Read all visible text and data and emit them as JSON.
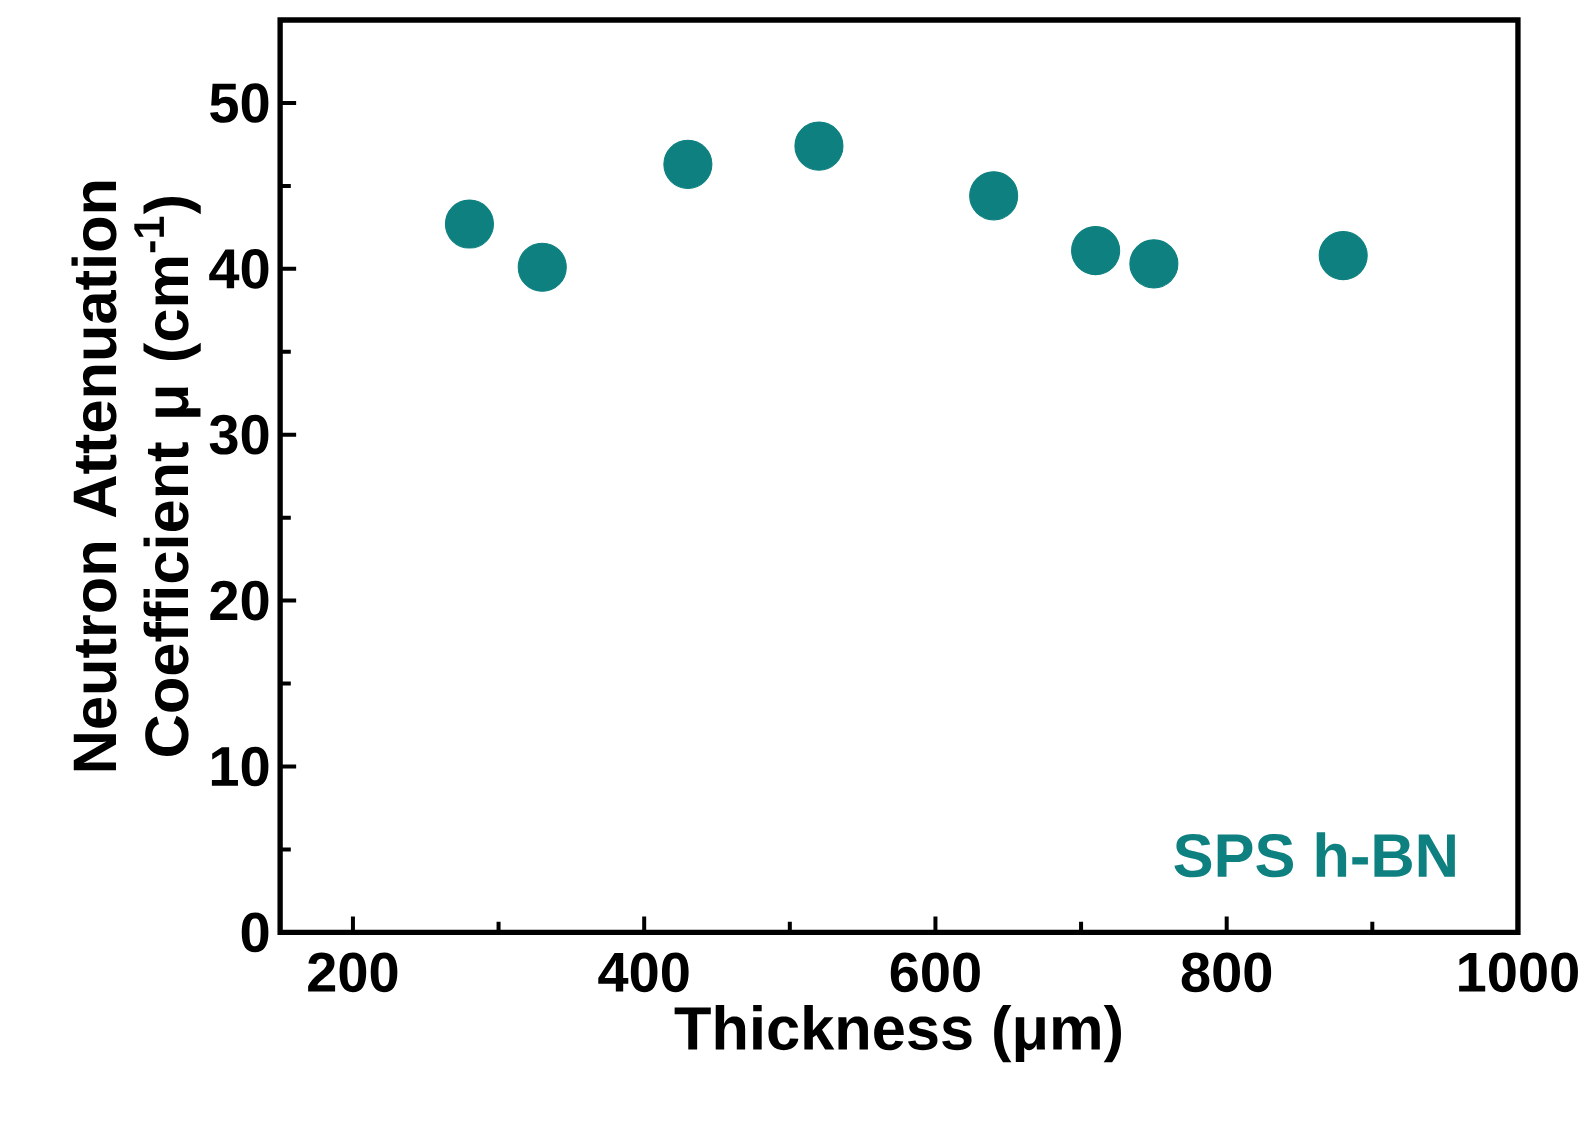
{
  "chart_data": {
    "type": "scatter",
    "xlabel": "Thickness (μm)",
    "ylabel": "Neutron Attenuation Coefficient μ (cm$^{-1}$)",
    "xlim": [
      150,
      1000
    ],
    "xticks": [
      200,
      400,
      600,
      800,
      1000
    ],
    "ylim": [
      0,
      55
    ],
    "yticks": [
      0,
      10,
      20,
      30,
      40,
      50
    ],
    "marker": "circle",
    "series": [
      {
        "name": "SPS h-BN",
        "color": "#0e8080",
        "x": [
          280,
          330,
          430,
          520,
          640,
          710,
          750,
          880
        ],
        "values": [
          42.7,
          40.1,
          46.3,
          47.4,
          44.4,
          41.1,
          40.3,
          40.8
        ]
      }
    ]
  }
}
